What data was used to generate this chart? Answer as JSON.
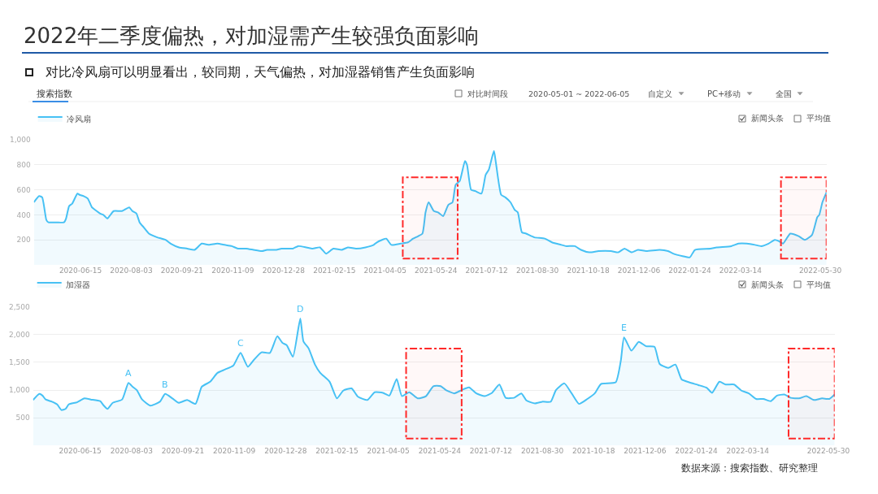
{
  "chart_data": [
    {
      "type": "area",
      "title": "2022年二季度偏热，对加湿需产生较强负面影响",
      "subtitle": "对比冷风扇可以明显看出，较同期，天气偏热，对加湿器销售产生负面影响",
      "annotations": [
        "搜索指数",
        "对比时间段",
        "2020-05-01 ~ 2022-06-05",
        "自定义",
        "PC+移动",
        "全国",
        "新闻头条",
        "平均值"
      ],
      "x": [
        "2020-05-01",
        "2020-05-06",
        "2020-05-09",
        "2020-05-13",
        "2020-05-15",
        "2020-05-23",
        "2020-05-30",
        "2020-06-01",
        "2020-06-04",
        "2020-06-07",
        "2020-06-12",
        "2020-06-14",
        "2020-06-18",
        "2020-06-22",
        "2020-06-26",
        "2020-06-29",
        "2020-07-04",
        "2020-07-07",
        "2020-07-11",
        "2020-07-13",
        "2020-07-17",
        "2020-07-25",
        "2020-08-01",
        "2020-08-04",
        "2020-08-08",
        "2020-08-11",
        "2020-08-15",
        "2020-08-20",
        "2020-08-28",
        "2020-09-05",
        "2020-09-10",
        "2020-09-18",
        "2020-09-26",
        "2020-10-03",
        "2020-10-10",
        "2020-10-17",
        "2020-10-25",
        "2020-11-01",
        "2020-11-08",
        "2020-11-14",
        "2020-11-22",
        "2020-11-29",
        "2020-12-07",
        "2020-12-12",
        "2020-12-21",
        "2020-12-26",
        "2021-01-06",
        "2021-01-11",
        "2021-01-19",
        "2021-01-25",
        "2021-02-01",
        "2021-02-07",
        "2021-02-14",
        "2021-02-22",
        "2021-02-28",
        "2021-03-08",
        "2021-03-17",
        "2021-03-25",
        "2021-03-28",
        "2021-04-02",
        "2021-04-06",
        "2021-04-11",
        "2021-04-20",
        "2021-04-27",
        "2021-05-02",
        "2021-05-07",
        "2021-05-11",
        "2021-05-14",
        "2021-05-17",
        "2021-05-22",
        "2021-05-26",
        "2021-05-31",
        "2021-06-05",
        "2021-06-09",
        "2021-06-12",
        "2021-06-16",
        "2021-06-21",
        "2021-06-23",
        "2021-06-27",
        "2021-07-01",
        "2021-07-07",
        "2021-07-11",
        "2021-07-14",
        "2021-07-19",
        "2021-07-21",
        "2021-07-26",
        "2021-07-30",
        "2021-08-04",
        "2021-08-08",
        "2021-08-11",
        "2021-08-15",
        "2021-08-19",
        "2021-08-27",
        "2021-09-06",
        "2021-09-13",
        "2021-09-22",
        "2021-09-27",
        "2021-10-05",
        "2021-10-11",
        "2021-10-19",
        "2021-10-28",
        "2021-11-09",
        "2021-11-16",
        "2021-11-22",
        "2021-11-29",
        "2021-12-05",
        "2021-12-13",
        "2021-12-26",
        "2022-01-03",
        "2022-01-08",
        "2022-01-17",
        "2022-01-24",
        "2022-01-29",
        "2022-02-13",
        "2022-02-19",
        "2022-03-05",
        "2022-03-12",
        "2022-03-20",
        "2022-03-28",
        "2022-04-03",
        "2022-04-10",
        "2022-04-16",
        "2022-04-20",
        "2022-04-24",
        "2022-05-01",
        "2022-05-09",
        "2022-05-15",
        "2022-05-22",
        "2022-05-27",
        "2022-05-29",
        "2022-06-01",
        "2022-06-05"
      ],
      "series": [
        {
          "name": "冷风扇",
          "color": "#47c1f4",
          "values": [
            500,
            550,
            540,
            360,
            340,
            340,
            340,
            370,
            470,
            490,
            570,
            560,
            550,
            530,
            460,
            440,
            410,
            400,
            370,
            390,
            430,
            430,
            460,
            430,
            410,
            340,
            300,
            250,
            220,
            200,
            170,
            140,
            130,
            120,
            170,
            160,
            170,
            160,
            150,
            130,
            130,
            120,
            110,
            120,
            120,
            130,
            130,
            150,
            140,
            130,
            140,
            90,
            130,
            120,
            140,
            130,
            140,
            160,
            180,
            200,
            210,
            160,
            170,
            180,
            210,
            230,
            250,
            420,
            500,
            430,
            420,
            390,
            480,
            500,
            640,
            670,
            830,
            800,
            600,
            590,
            570,
            720,
            760,
            910,
            810,
            560,
            540,
            500,
            440,
            420,
            260,
            250,
            220,
            210,
            180,
            160,
            150,
            150,
            120,
            100,
            110,
            110,
            100,
            130,
            100,
            120,
            110,
            120,
            110,
            90,
            70,
            60,
            120,
            130,
            140,
            150,
            170,
            170,
            160,
            150,
            170,
            200,
            190,
            170,
            250,
            230,
            200,
            240,
            380,
            400,
            500,
            580
          ]
        }
      ],
      "xlim": [
        "2020-05-01",
        "2022-06-05"
      ],
      "xticks": [
        "2020-06-15",
        "2020-08-03",
        "2020-09-21",
        "2020-11-09",
        "2020-12-28",
        "2021-02-15",
        "2021-04-05",
        "2021-05-24",
        "2021-07-12",
        "2021-08-30",
        "2021-10-18",
        "2021-12-06",
        "2022-01-24",
        "2022-03-14",
        "2022-05-30"
      ],
      "ylim": [
        0,
        1000
      ],
      "yticks": [
        200,
        400,
        600,
        800,
        {
          "value": 1000,
          "label": "1,000"
        }
      ],
      "grid": "y",
      "legend": "top left",
      "bands": [
        {
          "axis": "x",
          "from": "2021-04-22",
          "to": "2021-06-14",
          "color": "#ff2a2a"
        },
        {
          "axis": "x",
          "from": "2022-04-22",
          "to": "2022-06-05",
          "color": "#ff2a2a"
        }
      ]
    },
    {
      "type": "area",
      "annotations": [
        {
          "text": "A",
          "x": "2020-07-31",
          "y": 1130
        },
        {
          "text": "B",
          "x": "2020-09-04",
          "y": 930
        },
        {
          "text": "C",
          "x": "2020-11-15",
          "y": 1670
        },
        {
          "text": "D",
          "x": "2021-01-11",
          "y": 2290
        },
        {
          "text": "E",
          "x": "2021-11-16",
          "y": 1950
        },
        "新闻头条",
        "平均值",
        "数据来源：搜索指数、研究整理"
      ],
      "x": [
        "2020-05-01",
        "2020-05-07",
        "2020-05-10",
        "2020-05-13",
        "2020-05-19",
        "2020-05-24",
        "2020-05-28",
        "2020-06-01",
        "2020-06-04",
        "2020-06-12",
        "2020-06-19",
        "2020-06-25",
        "2020-07-04",
        "2020-07-07",
        "2020-07-11",
        "2020-07-16",
        "2020-07-25",
        "2020-07-31",
        "2020-08-04",
        "2020-08-08",
        "2020-08-13",
        "2020-08-21",
        "2020-08-30",
        "2020-09-04",
        "2020-09-11",
        "2020-09-17",
        "2020-09-25",
        "2020-10-03",
        "2020-10-09",
        "2020-10-17",
        "2020-10-24",
        "2020-10-31",
        "2020-11-08",
        "2020-11-15",
        "2020-11-22",
        "2020-11-28",
        "2020-12-05",
        "2020-12-13",
        "2020-12-20",
        "2020-12-25",
        "2020-12-29",
        "2021-01-04",
        "2021-01-11",
        "2021-01-14",
        "2021-01-19",
        "2021-01-25",
        "2021-01-30",
        "2021-02-08",
        "2021-02-15",
        "2021-02-21",
        "2021-03-01",
        "2021-03-07",
        "2021-03-16",
        "2021-03-23",
        "2021-03-31",
        "2021-04-06",
        "2021-04-13",
        "2021-04-18",
        "2021-04-25",
        "2021-05-03",
        "2021-05-11",
        "2021-05-18",
        "2021-05-25",
        "2021-05-30",
        "2021-06-07",
        "2021-06-14",
        "2021-06-21",
        "2021-06-28",
        "2021-07-06",
        "2021-07-13",
        "2021-07-20",
        "2021-07-26",
        "2021-08-03",
        "2021-08-10",
        "2021-08-15",
        "2021-08-23",
        "2021-08-30",
        "2021-09-07",
        "2021-09-12",
        "2021-09-20",
        "2021-09-27",
        "2021-10-04",
        "2021-10-12",
        "2021-10-19",
        "2021-10-25",
        "2021-11-08",
        "2021-11-13",
        "2021-11-16",
        "2021-11-23",
        "2021-11-30",
        "2021-12-07",
        "2021-12-15",
        "2021-12-20",
        "2021-12-28",
        "2022-01-04",
        "2022-01-10",
        "2022-01-17",
        "2022-01-26",
        "2022-02-03",
        "2022-02-08",
        "2022-02-15",
        "2022-02-21",
        "2022-03-01",
        "2022-03-08",
        "2022-03-15",
        "2022-03-22",
        "2022-03-29",
        "2022-04-05",
        "2022-04-11",
        "2022-04-18",
        "2022-04-24",
        "2022-05-02",
        "2022-05-09",
        "2022-05-16",
        "2022-05-24",
        "2022-05-31",
        "2022-06-05"
      ],
      "series": [
        {
          "name": "加湿器",
          "color": "#47c1f4",
          "values": [
            820,
            930,
            900,
            830,
            790,
            740,
            640,
            660,
            740,
            780,
            850,
            830,
            800,
            730,
            660,
            770,
            830,
            1130,
            1060,
            1000,
            830,
            720,
            790,
            930,
            850,
            770,
            820,
            750,
            1060,
            1150,
            1310,
            1370,
            1440,
            1670,
            1420,
            1550,
            1680,
            1670,
            1970,
            1850,
            1810,
            1600,
            2290,
            1880,
            1750,
            1460,
            1310,
            1150,
            850,
            990,
            1030,
            880,
            820,
            960,
            950,
            900,
            1200,
            890,
            960,
            850,
            890,
            1070,
            1070,
            1000,
            940,
            1000,
            1050,
            940,
            890,
            950,
            1100,
            860,
            860,
            940,
            810,
            760,
            790,
            790,
            1000,
            1120,
            940,
            750,
            840,
            940,
            1110,
            1140,
            1540,
            1950,
            1710,
            1870,
            1790,
            1780,
            1470,
            1400,
            1460,
            1190,
            1140,
            1090,
            1040,
            950,
            1150,
            1100,
            1100,
            990,
            940,
            840,
            840,
            800,
            900,
            920,
            860,
            850,
            890,
            820,
            850,
            840,
            920
          ]
        }
      ],
      "xlim": [
        "2020-05-01",
        "2022-06-05"
      ],
      "xticks": [
        "2020-06-15",
        "2020-08-03",
        "2020-09-21",
        "2020-11-09",
        "2020-12-28",
        "2021-02-15",
        "2021-04-05",
        "2021-05-24",
        "2021-07-12",
        "2021-08-30",
        "2021-10-18",
        "2021-12-06",
        "2022-01-24",
        "2022-03-14",
        "2022-05-30"
      ],
      "ylim": [
        0,
        2500
      ],
      "yticks": [
        500,
        {
          "value": 1000,
          "label": "1,000"
        },
        {
          "value": 1500,
          "label": "1,500"
        },
        {
          "value": 2000,
          "label": "2,000"
        },
        {
          "value": 2500,
          "label": "2,500"
        }
      ],
      "grid": "y",
      "legend": "top left",
      "bands": [
        {
          "axis": "x",
          "from": "2021-04-22",
          "to": "2021-06-14",
          "color": "#ff2a2a"
        },
        {
          "axis": "x",
          "from": "2022-04-22",
          "to": "2022-06-05",
          "color": "#ff2a2a"
        }
      ]
    }
  ]
}
